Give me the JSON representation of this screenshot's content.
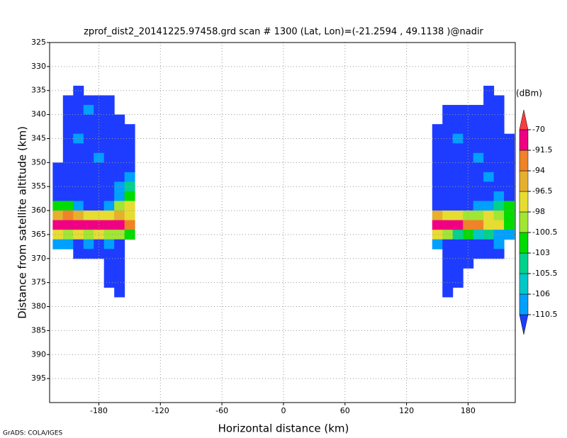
{
  "chart_data": {
    "type": "heatmap",
    "title": "zprof_dist2_20141225.97458.grd  scan # 1300  (Lat, Lon)=(-21.2594 , 49.1138 )@nadir",
    "xlabel": "Horizontal distance (km)",
    "ylabel": "Distance from satellite altitude (km)",
    "xlim": [
      -228,
      226
    ],
    "ylim": [
      325,
      400
    ],
    "y_inverted": true,
    "xticks": [
      -180,
      -120,
      -60,
      0,
      60,
      120,
      180
    ],
    "yticks": [
      325,
      330,
      335,
      340,
      345,
      350,
      355,
      360,
      365,
      370,
      375,
      380,
      385,
      390,
      395
    ],
    "grid": true,
    "colorbar": {
      "label": "(dBm)",
      "levels": [
        -110.5,
        -106,
        -105.5,
        -103,
        -100.5,
        -98,
        -96.5,
        -94,
        -91.5,
        -70
      ],
      "colors": [
        "#1e3cff",
        "#00a0ff",
        "#00c8c8",
        "#00d28c",
        "#00dc00",
        "#a0e632",
        "#e6dc32",
        "#e6af2d",
        "#f08228",
        "#f00082",
        "#fa3c3c"
      ]
    },
    "swaths": [
      {
        "x": [
          -220,
          -210,
          -200,
          -190,
          -180,
          -170,
          -160,
          -150
        ],
        "y": [
          335,
          337,
          339,
          341,
          343,
          345,
          347,
          349,
          351,
          353,
          355,
          357,
          359,
          361,
          363,
          365,
          367,
          369,
          371,
          373,
          375,
          377
        ],
        "values": [
          [
            null,
            null,
            -115,
            null,
            null,
            null,
            null,
            null
          ],
          [
            null,
            -115,
            -115,
            -115,
            -115,
            -115,
            null,
            null
          ],
          [
            null,
            -115,
            -115,
            -109,
            -115,
            -115,
            null,
            null
          ],
          [
            null,
            -115,
            -115,
            -115,
            -115,
            -115,
            -115,
            null
          ],
          [
            null,
            -115,
            -115,
            -115,
            -115,
            -115,
            -115,
            -115
          ],
          [
            null,
            -115,
            -109,
            -115,
            -115,
            -115,
            -115,
            -115
          ],
          [
            null,
            -115,
            -115,
            -115,
            -115,
            -115,
            -115,
            -115
          ],
          [
            null,
            -115,
            -115,
            -115,
            -109,
            -115,
            -115,
            -115
          ],
          [
            -115,
            -115,
            -115,
            -115,
            -115,
            -115,
            -115,
            -115
          ],
          [
            -115,
            -115,
            -115,
            -115,
            -115,
            -115,
            -115,
            -109
          ],
          [
            -115,
            -115,
            -115,
            -115,
            -115,
            -115,
            -109,
            -104
          ],
          [
            -115,
            -115,
            -115,
            -115,
            -115,
            -115,
            -109,
            -102
          ],
          [
            -101,
            -103,
            -109,
            -115,
            -115,
            -109,
            -99,
            -97
          ],
          [
            -95,
            -93,
            -95,
            -97,
            -98,
            -97,
            -96,
            -97
          ],
          [
            -85,
            -85,
            -86,
            -88,
            -87,
            -88,
            -90,
            -93
          ],
          [
            -97,
            -99,
            -98,
            -99,
            -98,
            -99,
            -100,
            -102
          ],
          [
            -109,
            -107,
            -115,
            -109,
            -115,
            -109,
            -115,
            null
          ],
          [
            null,
            null,
            -115,
            -115,
            -115,
            -115,
            -115,
            null
          ],
          [
            null,
            null,
            null,
            null,
            null,
            -115,
            -115,
            null
          ],
          [
            null,
            null,
            null,
            null,
            null,
            -115,
            -115,
            null
          ],
          [
            null,
            null,
            null,
            null,
            null,
            -115,
            -115,
            null
          ],
          [
            null,
            null,
            null,
            null,
            null,
            null,
            -115,
            null
          ]
        ]
      },
      {
        "x": [
          150,
          160,
          170,
          180,
          190,
          200,
          210,
          220
        ],
        "y": [
          335,
          337,
          339,
          341,
          343,
          345,
          347,
          349,
          351,
          353,
          355,
          357,
          359,
          361,
          363,
          365,
          367,
          369,
          371,
          373,
          375,
          377
        ],
        "values": [
          [
            null,
            null,
            null,
            null,
            null,
            -115,
            null,
            null
          ],
          [
            null,
            null,
            null,
            null,
            null,
            -115,
            -115,
            null
          ],
          [
            null,
            -115,
            -115,
            -115,
            -115,
            -115,
            -115,
            null
          ],
          [
            null,
            -115,
            -115,
            -115,
            -115,
            -115,
            -115,
            null
          ],
          [
            -115,
            -115,
            -115,
            -115,
            -115,
            -115,
            -115,
            null
          ],
          [
            -115,
            -115,
            -109,
            -115,
            -115,
            -115,
            -115,
            -115
          ],
          [
            -115,
            -115,
            -115,
            -115,
            -115,
            -115,
            -115,
            -115
          ],
          [
            -115,
            -115,
            -115,
            -115,
            -109,
            -115,
            -115,
            -115
          ],
          [
            -115,
            -115,
            -115,
            -115,
            -115,
            -115,
            -115,
            -115
          ],
          [
            -115,
            -115,
            -115,
            -115,
            -115,
            -109,
            -115,
            -115
          ],
          [
            -115,
            -115,
            -115,
            -115,
            -115,
            -115,
            -115,
            -115
          ],
          [
            -115,
            -115,
            -115,
            -115,
            -115,
            -115,
            -109,
            -115
          ],
          [
            -115,
            -115,
            -115,
            -115,
            -109,
            -107,
            -104,
            -102
          ],
          [
            -96,
            -97,
            -98,
            -99,
            -99,
            -98,
            -100,
            -101
          ],
          [
            -85,
            -86,
            -90,
            -93,
            -94,
            -97,
            -98,
            -101
          ],
          [
            -97,
            -100,
            -104,
            -103,
            -106,
            -104,
            -107,
            -109
          ],
          [
            -107,
            -115,
            -115,
            -115,
            -115,
            -115,
            -109,
            null
          ],
          [
            null,
            -115,
            -115,
            -115,
            -115,
            -115,
            -115,
            null
          ],
          [
            null,
            -115,
            -115,
            -115,
            null,
            null,
            null,
            null
          ],
          [
            null,
            -115,
            -115,
            null,
            null,
            null,
            null,
            null
          ],
          [
            null,
            -115,
            -115,
            null,
            null,
            null,
            null,
            null
          ],
          [
            null,
            -115,
            null,
            null,
            null,
            null,
            null,
            null
          ]
        ]
      }
    ]
  },
  "credit": "GrADS: COLA/IGES"
}
